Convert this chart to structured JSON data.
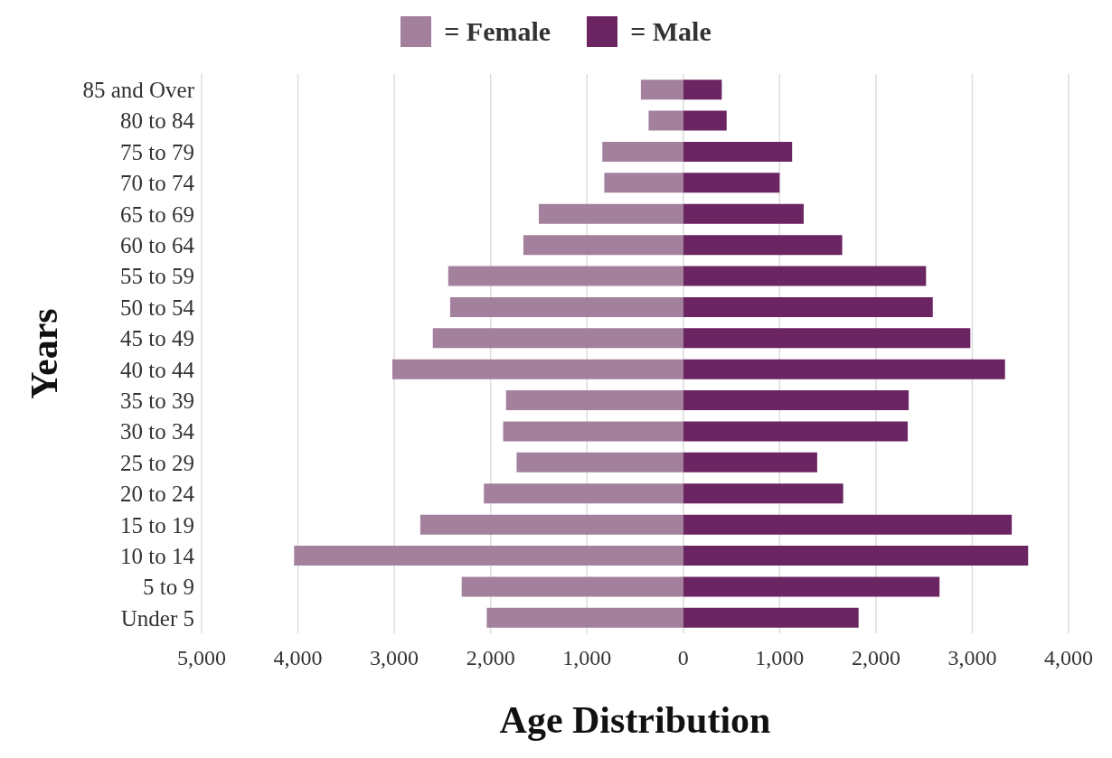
{
  "chart_data": {
    "type": "bar",
    "orientation": "horizontal",
    "stacked": true,
    "xlabel": "Age Distribution",
    "ylabel": "Years",
    "categories": [
      "85 and Over",
      "80 to 84",
      "75 to 79",
      "70 to 74",
      "65 to 69",
      "60 to 64",
      "55 to 59",
      "50 to 54",
      "45 to 49",
      "40 to 44",
      "35 to 39",
      "30 to 34",
      "25 to 29",
      "20 to 24",
      "15 to 19",
      "10 to 14",
      "5 to 9",
      "Under 5"
    ],
    "series": [
      {
        "name": "= Female",
        "color": "#a3819d",
        "values": [
          -440,
          -360,
          -840,
          -820,
          -1500,
          -1660,
          -2440,
          -2420,
          -2600,
          -3020,
          -1840,
          -1870,
          -1730,
          -2070,
          -2730,
          -4040,
          -2300,
          -2040
        ]
      },
      {
        "name": "= Male",
        "color": "#6b2563",
        "values": [
          400,
          450,
          1130,
          1000,
          1250,
          1650,
          2520,
          2590,
          2980,
          3340,
          2340,
          2330,
          1390,
          1660,
          3410,
          3580,
          2660,
          1820
        ]
      }
    ],
    "xlim": [
      -5000,
      4000
    ],
    "xticks": [
      {
        "value": -5000,
        "label": "5,000"
      },
      {
        "value": -4000,
        "label": "4,000"
      },
      {
        "value": -3000,
        "label": "3,000"
      },
      {
        "value": -2000,
        "label": "2,000"
      },
      {
        "value": -1000,
        "label": "1,000"
      },
      0,
      {
        "value": 1000,
        "label": "1,000"
      },
      {
        "value": 2000,
        "label": "2,000"
      },
      {
        "value": 3000,
        "label": "3,000"
      },
      {
        "value": 4000,
        "label": "4,000"
      }
    ],
    "grid": "x",
    "legend": "top"
  }
}
